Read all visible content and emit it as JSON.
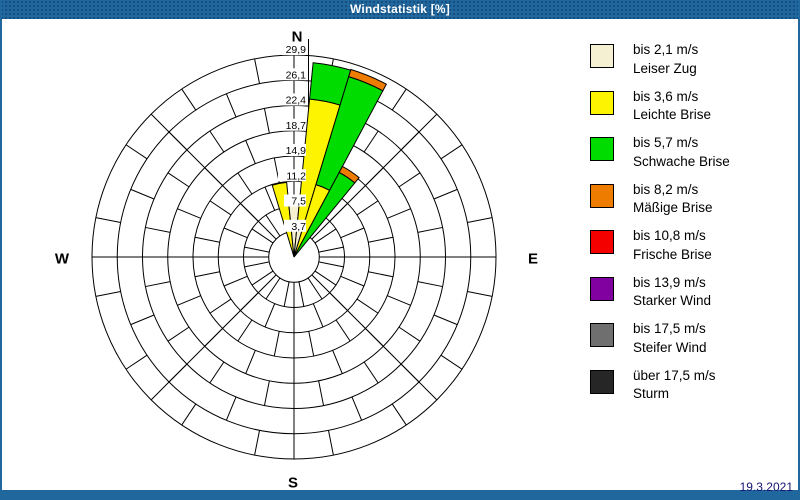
{
  "window": {
    "title": "Windstatistik [%]",
    "date": "19.3.2021"
  },
  "compass": {
    "north": "N",
    "east": "E",
    "south": "S",
    "west": "W"
  },
  "ui_colors": {
    "bar_blue": "#1F679C",
    "date_text": "#131370",
    "grid_line": "#000000"
  },
  "class_colors": {
    "bis 2,1 m/s": "#F4F0D1",
    "bis 3,6 m/s": "#FCF400",
    "bis 5,7 m/s": "#00DC00",
    "bis 8,2 m/s": "#EE7C00",
    "bis 10,8 m/s": "#F40000",
    "bis 13,9 m/s": "#8000A0",
    "bis 17,5 m/s": "#6F6F6F",
    "über 17,5 m/s": "#262626"
  },
  "legend": {
    "items": [
      {
        "speed": "bis 2,1 m/s",
        "name": "Leiser Zug"
      },
      {
        "speed": "bis 3,6 m/s",
        "name": "Leichte Brise"
      },
      {
        "speed": "bis 5,7 m/s",
        "name": "Schwache Brise"
      },
      {
        "speed": "bis 8,2 m/s",
        "name": "Mäßige Brise"
      },
      {
        "speed": "bis 10,8 m/s",
        "name": "Frische Brise"
      },
      {
        "speed": "bis 13,9 m/s",
        "name": "Starker Wind"
      },
      {
        "speed": "bis 17,5 m/s",
        "name": "Steifer Wind"
      },
      {
        "speed": "über 17,5 m/s",
        "name": "Sturm"
      }
    ]
  },
  "chart_data": {
    "type": "windrose",
    "title": "Windstatistik [%]",
    "unit": "%",
    "max_value": 29.9,
    "ring_values": [
      3.7,
      7.5,
      11.2,
      14.9,
      18.7,
      22.4,
      26.1,
      29.9
    ],
    "ring_labels": [
      "3,7",
      "7,5",
      "11,2",
      "14,9",
      "18,7",
      "22,4",
      "26,1",
      "29,9"
    ],
    "sector_width_deg": 11.25,
    "grid": {
      "rings": 8,
      "spoke_step_deg": 11.25,
      "pattern": "brick",
      "inner_hole": true
    },
    "petals": [
      {
        "center_deg": -11.25,
        "segments": [
          {
            "class": "bis 3,6 m/s",
            "value": 11.1,
            "cum": 11.1
          }
        ]
      },
      {
        "center_deg": 0,
        "segments": [
          {
            "class": "bis 2,1 m/s",
            "value": 8.9,
            "cum": 8.9
          }
        ]
      },
      {
        "center_deg": 11.25,
        "segments": [
          {
            "class": "bis 2,1 m/s",
            "value": 4.5,
            "cum": 4.5
          },
          {
            "class": "bis 3,6 m/s",
            "value": 19.0,
            "cum": 23.5
          },
          {
            "class": "bis 5,7 m/s",
            "value": 5.4,
            "cum": 28.9
          }
        ]
      },
      {
        "center_deg": 22.5,
        "segments": [
          {
            "class": "bis 3,6 m/s",
            "value": 11.2,
            "cum": 11.2
          },
          {
            "class": "bis 5,7 m/s",
            "value": 16.7,
            "cum": 27.9
          },
          {
            "class": "bis 8,2 m/s",
            "value": 1.1,
            "cum": 29.0
          }
        ]
      },
      {
        "center_deg": 33.75,
        "segments": [
          {
            "class": "bis 5,7 m/s",
            "value": 14.2,
            "cum": 14.2
          },
          {
            "class": "bis 8,2 m/s",
            "value": 1.0,
            "cum": 15.2
          }
        ]
      }
    ]
  }
}
